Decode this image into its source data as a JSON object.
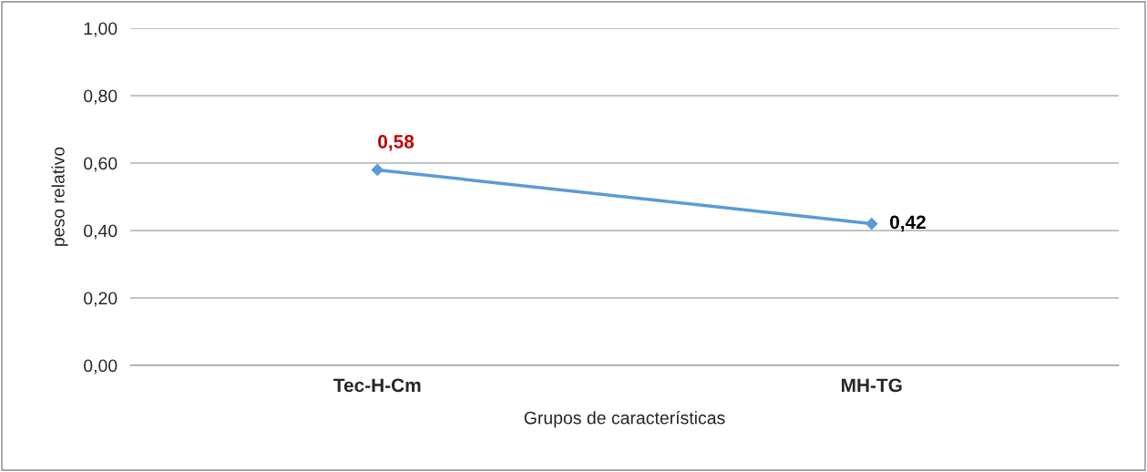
{
  "chart_data": {
    "type": "line",
    "categories": [
      "Tec-H-Cm",
      "MH-TG"
    ],
    "series": [
      {
        "color": "#5b9bd5",
        "values": [
          0.58,
          0.42
        ],
        "value_labels": [
          "0,58",
          "0,42"
        ]
      }
    ],
    "xlabel": "Grupos de características",
    "ylabel": "peso relativo",
    "ylim": [
      0,
      1
    ],
    "yticks": [
      {
        "value": 0,
        "label": "0,00"
      },
      {
        "value": 0.2,
        "label": "0,20"
      },
      {
        "value": 0.4,
        "label": "0,40"
      },
      {
        "value": 0.6,
        "label": "0,60"
      },
      {
        "value": 0.8,
        "label": "0,80"
      },
      {
        "value": 1,
        "label": "1,00"
      }
    ],
    "grid": "y",
    "marker": "diamond",
    "line_style": "solid"
  }
}
